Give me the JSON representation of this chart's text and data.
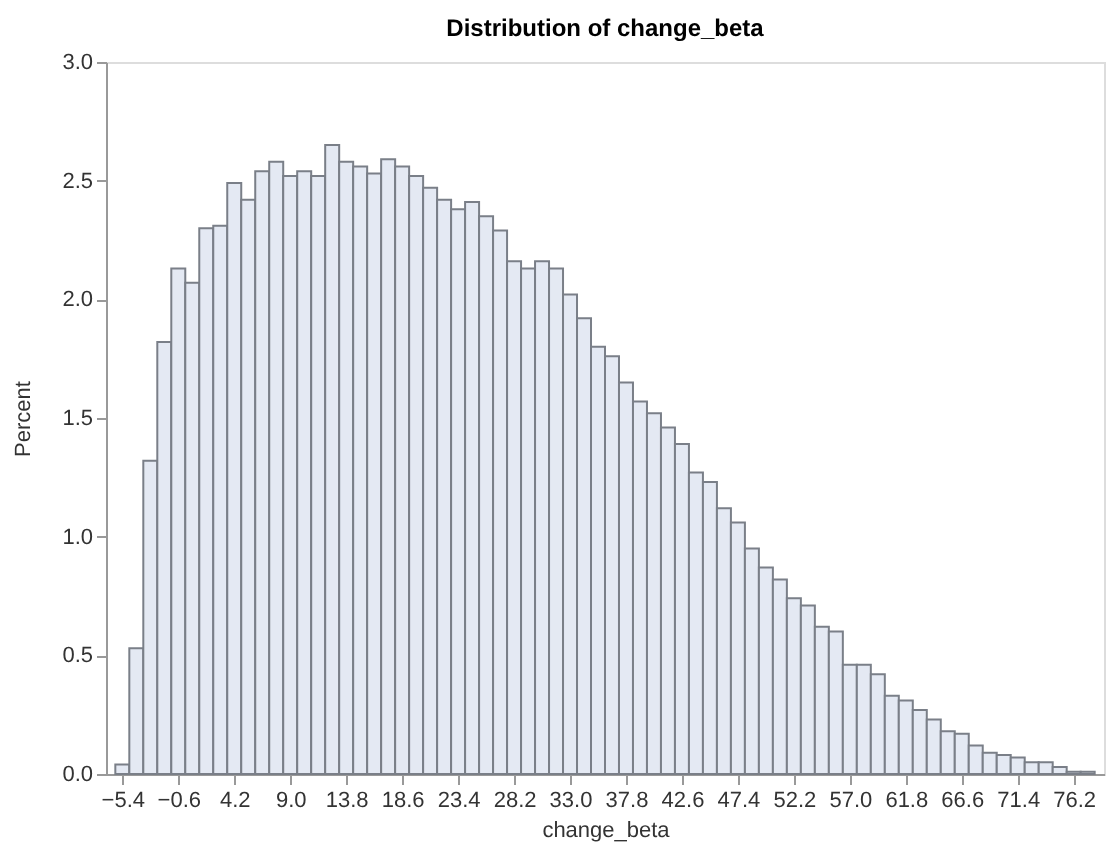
{
  "chart_data": {
    "type": "histogram",
    "title": "Distribution of change_beta",
    "xlabel": "change_beta",
    "ylabel": "Percent",
    "bins": [
      -6.0,
      -4.8,
      -3.6,
      -2.4,
      -1.2,
      0.0,
      1.2,
      2.4,
      3.6,
      4.8,
      6.0,
      7.2,
      8.4,
      9.6,
      10.8,
      12.0,
      13.2,
      14.4,
      15.6,
      16.8,
      18.0,
      19.2,
      20.4,
      21.6,
      22.8,
      24.0,
      25.2,
      26.4,
      27.6,
      28.8,
      30.0,
      31.2,
      32.4,
      33.6,
      34.8,
      36.0,
      37.2,
      38.4,
      39.6,
      40.8,
      42.0,
      43.2,
      44.4,
      45.6,
      46.8,
      48.0,
      49.2,
      50.4,
      51.6,
      52.8,
      54.0,
      55.2,
      56.4,
      57.6,
      58.8,
      60.0,
      61.2,
      62.4,
      63.6,
      64.8,
      66.0,
      67.2,
      68.4,
      69.6,
      70.8,
      72.0,
      73.2,
      74.4,
      75.6,
      76.8,
      78.0
    ],
    "values": [
      0.04,
      0.53,
      1.32,
      1.82,
      2.13,
      2.07,
      2.3,
      2.31,
      2.49,
      2.42,
      2.54,
      2.58,
      2.52,
      2.54,
      2.52,
      2.65,
      2.58,
      2.56,
      2.53,
      2.59,
      2.56,
      2.52,
      2.47,
      2.42,
      2.38,
      2.41,
      2.35,
      2.29,
      2.16,
      2.13,
      2.16,
      2.13,
      2.02,
      1.92,
      1.8,
      1.76,
      1.65,
      1.57,
      1.52,
      1.46,
      1.39,
      1.27,
      1.23,
      1.12,
      1.06,
      0.95,
      0.87,
      0.82,
      0.74,
      0.71,
      0.62,
      0.6,
      0.46,
      0.46,
      0.42,
      0.33,
      0.31,
      0.27,
      0.23,
      0.18,
      0.17,
      0.12,
      0.09,
      0.08,
      0.07,
      0.05,
      0.05,
      0.03,
      0.01,
      0.01
    ],
    "color": "#e4e9f3",
    "xlim": [
      -6.8,
      78.8
    ],
    "xticks": [
      -5.4,
      -0.6,
      4.2,
      {
        "value": 9,
        "label": "9.0"
      },
      13.8,
      18.6,
      23.4,
      28.2,
      {
        "value": 33,
        "label": "33.0"
      },
      37.8,
      42.6,
      47.4,
      52.2,
      {
        "value": 57,
        "label": "57.0"
      },
      61.8,
      66.6,
      71.4,
      76.2
    ],
    "ylim": [
      0,
      3.0
    ],
    "yticks": [
      {
        "value": 0,
        "label": "0.0"
      },
      0.5,
      {
        "value": 1,
        "label": "1.0"
      },
      1.5,
      {
        "value": 2,
        "label": "2.0"
      },
      2.5,
      {
        "value": 3,
        "label": "3.0"
      }
    ],
    "grid": false
  }
}
